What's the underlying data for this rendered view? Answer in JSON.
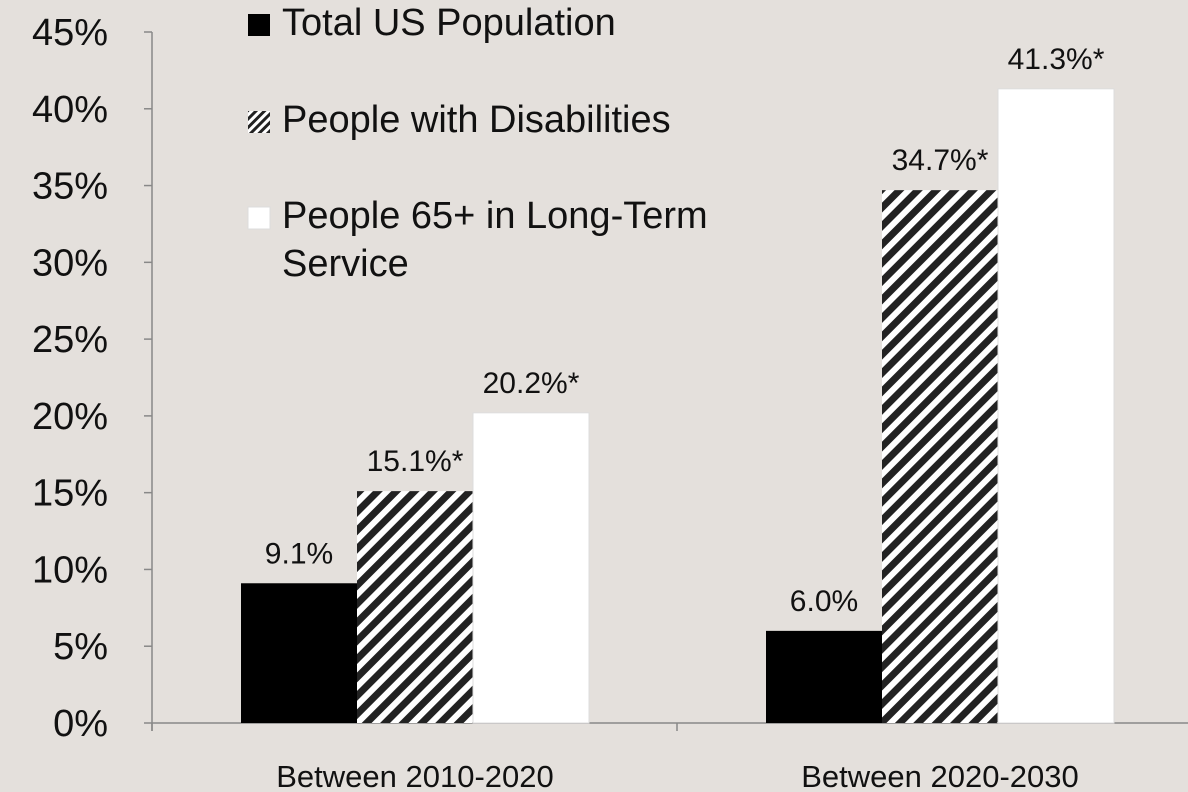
{
  "chart_data": {
    "type": "bar",
    "categories": [
      "Between 2010-2020",
      "Between 2020-2030"
    ],
    "series": [
      {
        "name": "Total US Population",
        "values": [
          9.1,
          6.0
        ],
        "labels": [
          "9.1%",
          "6.0%"
        ],
        "fill": "solid",
        "color": "#000000"
      },
      {
        "name": "People with Disabilities",
        "values": [
          15.1,
          34.7
        ],
        "labels": [
          "15.1%*",
          "34.7%*"
        ],
        "fill": "diagonal-stripes",
        "color": "#222222"
      },
      {
        "name": "People 65+ in Long-Term Service",
        "name_lines": [
          "People 65+ in Long-Term",
          "Service"
        ],
        "values": [
          20.2,
          41.3
        ],
        "labels": [
          "20.2%*",
          "41.3%*"
        ],
        "fill": "solid",
        "color": "#ffffff"
      }
    ],
    "ylim": [
      0,
      45
    ],
    "yticks": [
      {
        "value": 0,
        "label": "0%"
      },
      {
        "value": 5,
        "label": "5%"
      },
      {
        "value": 10,
        "label": "10%"
      },
      {
        "value": 15,
        "label": "15%"
      },
      {
        "value": 20,
        "label": "20%"
      },
      {
        "value": 25,
        "label": "25%"
      },
      {
        "value": 30,
        "label": "30%"
      },
      {
        "value": 35,
        "label": "35%"
      },
      {
        "value": 40,
        "label": "40%"
      },
      {
        "value": 45,
        "label": "45%"
      }
    ],
    "grid": false,
    "legend": "top-left",
    "title": "",
    "xlabel": "",
    "ylabel": ""
  },
  "colors": {
    "background": "#e4e0dc",
    "axis": "#888888",
    "text": "#111111"
  }
}
